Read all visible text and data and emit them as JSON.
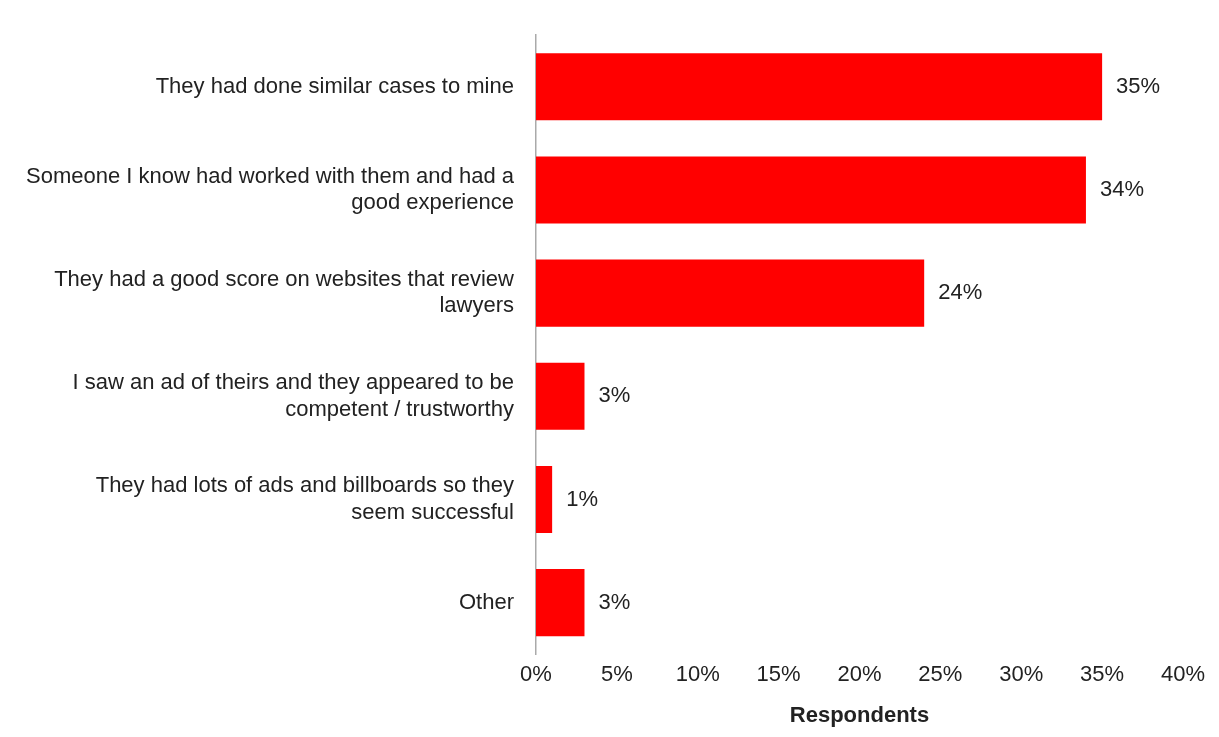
{
  "chart_data": {
    "type": "bar",
    "orientation": "horizontal",
    "xlabel": "Respondents",
    "categories": [
      "They had done similar cases to mine",
      "Someone I know had worked with them and had a good experience",
      "They had a good score on websites that review lawyers",
      "I saw an ad of theirs and they appeared to be competent / trustworthy",
      "They had lots of ads and billboards so they seem successful",
      "Other"
    ],
    "values": [
      35,
      34,
      24,
      3,
      1,
      3
    ],
    "value_labels": [
      "35%",
      "34%",
      "24%",
      "3%",
      "1%",
      "3%"
    ],
    "color": "#ff0000",
    "xlim": [
      0,
      40
    ],
    "xticks": [
      {
        "value": 0,
        "label": "0%"
      },
      {
        "value": 5,
        "label": "5%"
      },
      {
        "value": 10,
        "label": "10%"
      },
      {
        "value": 15,
        "label": "15%"
      },
      {
        "value": 20,
        "label": "20%"
      },
      {
        "value": 25,
        "label": "25%"
      },
      {
        "value": 30,
        "label": "30%"
      },
      {
        "value": 35,
        "label": "35%"
      },
      {
        "value": 40,
        "label": "40%"
      }
    ],
    "grid": false,
    "legend": false
  }
}
